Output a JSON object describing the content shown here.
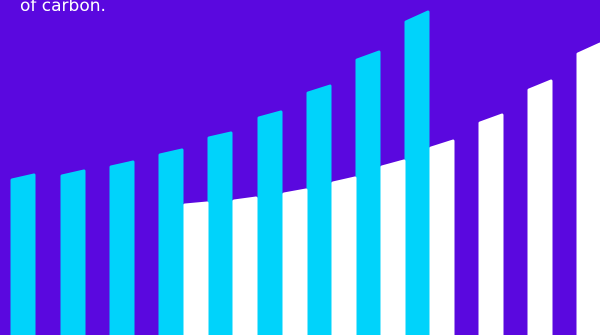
{
  "caption": "of carbon."
}
